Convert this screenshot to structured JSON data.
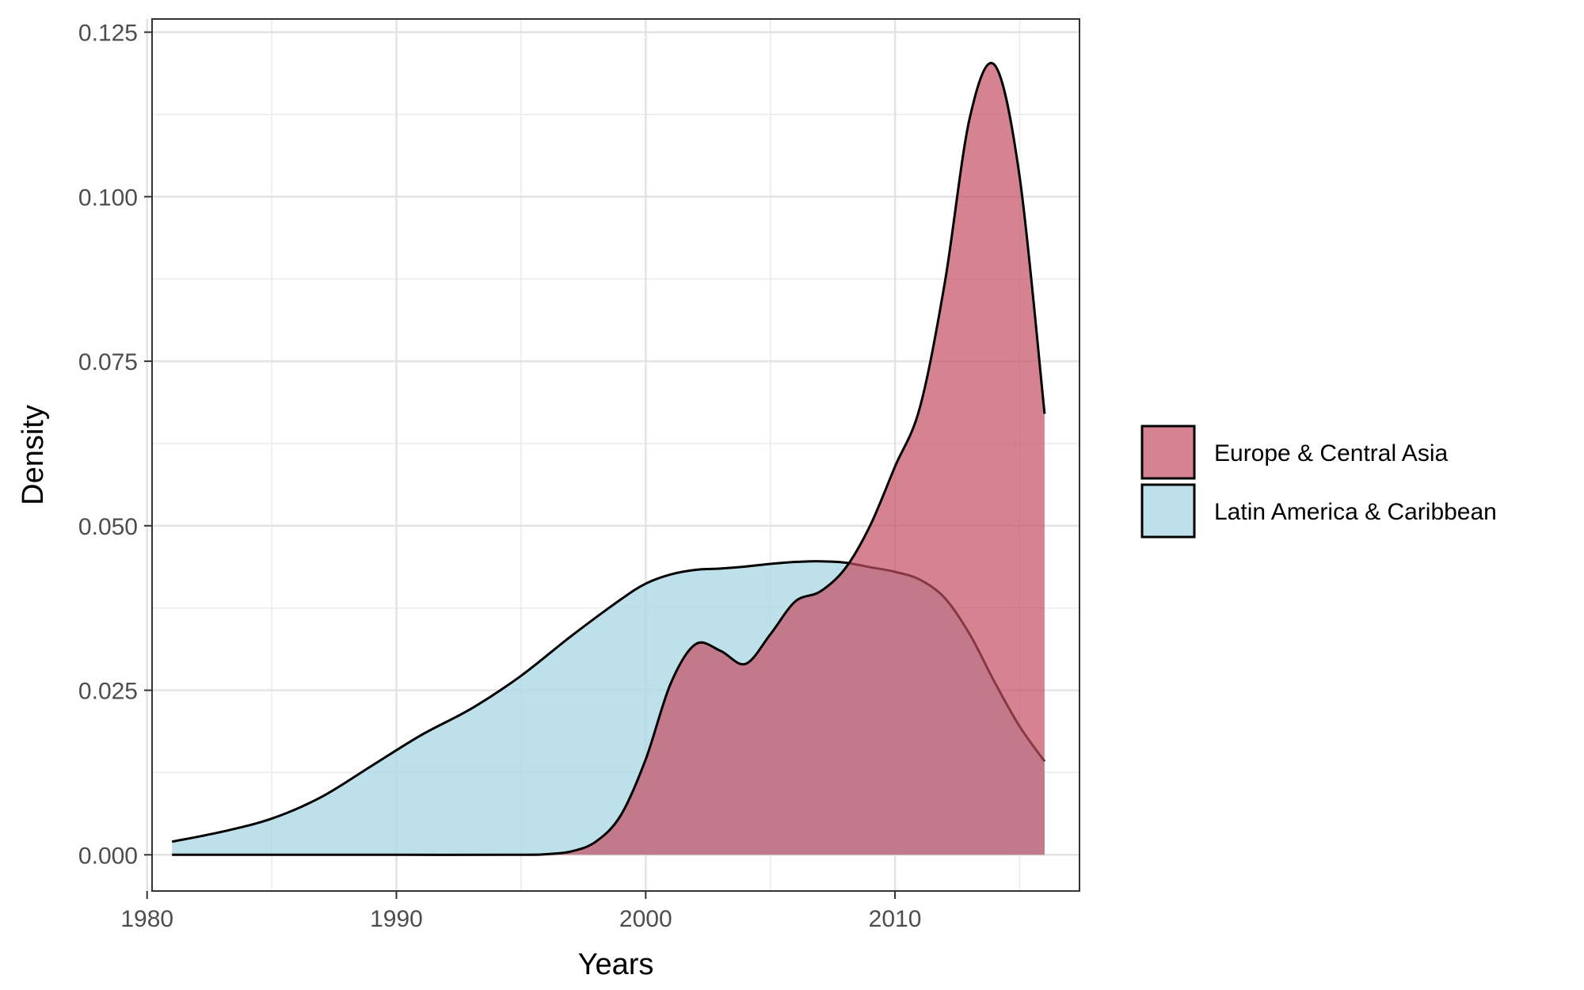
{
  "chart_data": {
    "type": "area",
    "chart_kind": "density",
    "xlabel": "Years",
    "ylabel": "Density",
    "xlim": [
      1980.2,
      2017.4
    ],
    "ylim": [
      -0.0055,
      0.127
    ],
    "x_ticks": [
      1980,
      1990,
      2000,
      2010
    ],
    "y_ticks": [
      0.0,
      0.025,
      0.05,
      0.075,
      0.1,
      0.125
    ],
    "y_tick_labels": [
      "0.000",
      "0.025",
      "0.050",
      "0.075",
      "0.100",
      "0.125"
    ],
    "grid": true,
    "legend_position": "right",
    "legend_title": "",
    "series": [
      {
        "name": "Latin America & Caribbean",
        "color": "#add8e6",
        "opacity": 0.8,
        "x": [
          1981,
          1983,
          1985,
          1987,
          1989,
          1991,
          1993,
          1995,
          1997,
          1999,
          2000,
          2001,
          2002,
          2003,
          2004,
          2005,
          2006,
          2007,
          2008,
          2009,
          2010,
          2011,
          2012,
          2013,
          2014,
          2015,
          2016
        ],
        "y": [
          0.002,
          0.0035,
          0.0055,
          0.0088,
          0.0135,
          0.0182,
          0.0222,
          0.0272,
          0.0332,
          0.0388,
          0.0412,
          0.0426,
          0.0433,
          0.0435,
          0.0438,
          0.0442,
          0.0445,
          0.0446,
          0.0444,
          0.0437,
          0.043,
          0.0418,
          0.039,
          0.0335,
          0.0262,
          0.0195,
          0.0142
        ]
      },
      {
        "name": "Europe & Central Asia",
        "color": "#c44e62",
        "opacity": 0.7,
        "x": [
          1981,
          1985,
          1990,
          1995,
          1996,
          1997,
          1998,
          1999,
          2000,
          2001,
          2002,
          2003,
          2004,
          2005,
          2006,
          2007,
          2008,
          2009,
          2010,
          2011,
          2012,
          2013,
          2014,
          2015,
          2016
        ],
        "y": [
          0.0,
          0.0,
          0.0,
          0.0,
          0.0001,
          0.0005,
          0.002,
          0.006,
          0.0145,
          0.026,
          0.032,
          0.031,
          0.029,
          0.0335,
          0.0385,
          0.04,
          0.0435,
          0.05,
          0.059,
          0.068,
          0.087,
          0.112,
          0.12,
          0.103,
          0.067
        ]
      }
    ]
  }
}
